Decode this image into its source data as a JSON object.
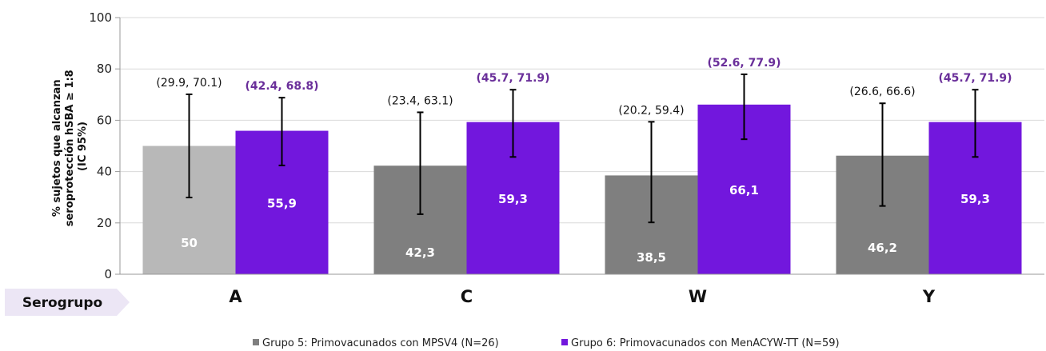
{
  "chart_data": {
    "type": "bar",
    "categories": [
      "A",
      "C",
      "W",
      "Y"
    ],
    "category_axis_label": "Serogrupo",
    "ylabel_lines": [
      "% sujetos que alcanzan",
      "seroprotección hSBA ≥ 1:8",
      "(IC 95%)"
    ],
    "ylim": [
      0,
      100
    ],
    "yticks": [
      "0",
      "20",
      "40",
      "60",
      "80",
      "100"
    ],
    "grid": true,
    "legend_position": "bottom",
    "series": [
      {
        "name": "Grupo 5: Primovacunados con MPSV4  (N=26)",
        "color": "#7f7f7f",
        "point_colors": [
          "#b8b8b8",
          "#7f7f7f",
          "#7f7f7f",
          "#7f7f7f"
        ],
        "values": [
          50,
          42.3,
          38.5,
          46.2
        ],
        "value_labels": [
          "50",
          "42,3",
          "38,5",
          "46,2"
        ],
        "ci_low": [
          29.9,
          23.4,
          20.2,
          26.6
        ],
        "ci_high": [
          70.1,
          63.1,
          59.4,
          66.6
        ],
        "ci_labels": [
          "(29.9, 70.1)",
          "(23.4, 63.1)",
          "(20.2, 59.4)",
          "(26.6, 66.6)"
        ]
      },
      {
        "name": "Grupo 6: Primovacunados con MenACYW-TT (N=59)",
        "color": "#7217dd",
        "point_colors": [
          "#7217dd",
          "#7217dd",
          "#7217dd",
          "#7217dd"
        ],
        "values": [
          55.9,
          59.3,
          66.1,
          59.3
        ],
        "value_labels": [
          "55,9",
          "59,3",
          "66,1",
          "59,3"
        ],
        "ci_low": [
          42.4,
          45.7,
          52.6,
          45.7
        ],
        "ci_high": [
          68.8,
          71.9,
          77.9,
          71.9
        ],
        "ci_labels": [
          "(42.4, 68.8)",
          "(45.7, 71.9)",
          "(52.6, 77.9)",
          "(45.7, 71.9)"
        ]
      }
    ]
  }
}
